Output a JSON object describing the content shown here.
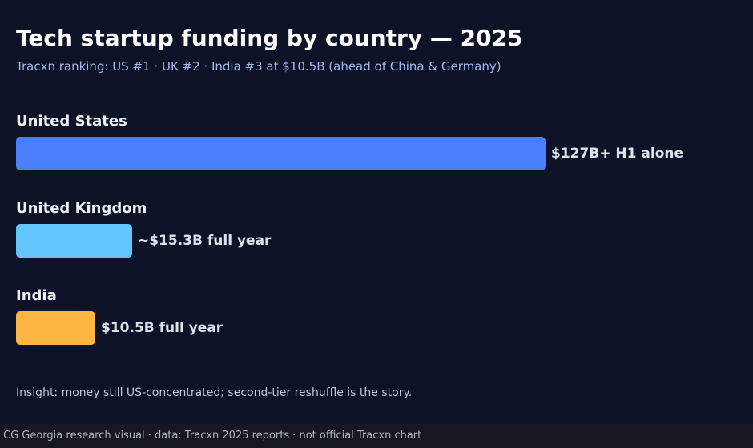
{
  "header": {
    "title": "Tech startup funding by country — 2025",
    "subtitle": "Tracxn ranking: US #1 · UK #2 · India #3 at $10.5B (ahead of China & Germany)"
  },
  "chart_data": {
    "type": "bar",
    "orientation": "horizontal",
    "title": "Tech startup funding by country — 2025",
    "subtitle": "Tracxn ranking: US #1 · UK #2 · India #3 at $10.5B (ahead of China & Germany)",
    "unit": "USD billions",
    "categories": [
      "United States",
      "United Kingdom",
      "India"
    ],
    "values": [
      127,
      15.3,
      10.5
    ],
    "value_labels": [
      "$127B+ H1 alone",
      "~$15.3B full year",
      "$10.5B full year"
    ],
    "colors": [
      "#4a7ffb",
      "#62c6fb",
      "#fdb544"
    ],
    "bar_display_scale": [
      {
        "category": "United States",
        "relative_length": 1.0
      },
      {
        "category": "United Kingdom",
        "relative_length": 0.22
      },
      {
        "category": "India",
        "relative_length": 0.15
      }
    ],
    "grid": false,
    "legend": "none"
  },
  "insight": "Insight: money still US-concentrated; second-tier reshuffle is the story.",
  "footer": {
    "text": "CG Georgia research visual · data: Tracxn 2025 reports · not official Tracxn chart"
  },
  "colors": {
    "background": "#0d1226",
    "footer_background": "#16181f",
    "title": "#ffffff",
    "subtitle": "#9fb9ee"
  }
}
